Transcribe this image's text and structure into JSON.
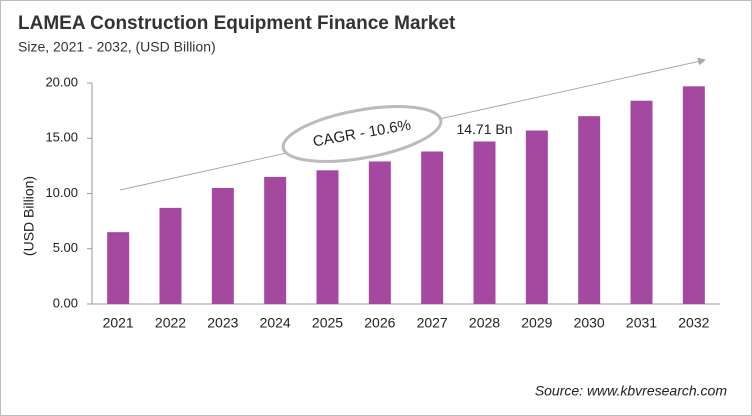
{
  "chart_data": {
    "type": "bar",
    "title": "LAMEA Construction Equipment Finance Market",
    "subtitle": "Size, 2021 - 2032, (USD Billion)",
    "y_label": "(USD Billion)",
    "annotation": "CAGR - 10.6%",
    "source": "Source: www.kbvresearch.com",
    "categories": [
      "2021",
      "2022",
      "2023",
      "2024",
      "2025",
      "2026",
      "2027",
      "2028",
      "2029",
      "2030",
      "2031",
      "2032"
    ],
    "values": [
      6.5,
      8.7,
      10.5,
      11.5,
      12.1,
      12.9,
      13.8,
      14.71,
      15.7,
      17.0,
      18.4,
      19.7
    ],
    "value_labels": [
      null,
      null,
      null,
      null,
      null,
      null,
      null,
      "14.71 Bn",
      null,
      null,
      null,
      null
    ],
    "color": "#a4499f",
    "ylim": [
      0,
      20
    ],
    "yticks": [
      {
        "value": 0,
        "label": "0.00"
      },
      {
        "value": 5,
        "label": "5.00"
      },
      {
        "value": 10,
        "label": "10.00"
      },
      {
        "value": 15,
        "label": "15.00"
      },
      {
        "value": 20,
        "label": "20.00"
      }
    ],
    "grid": false
  }
}
